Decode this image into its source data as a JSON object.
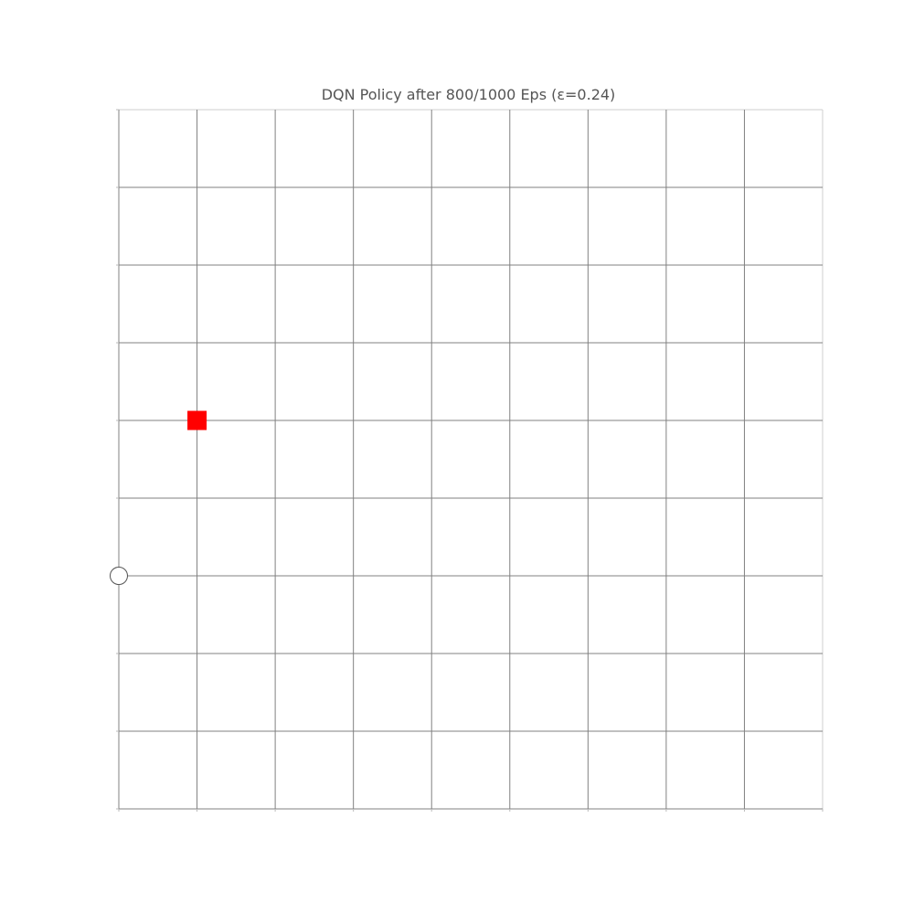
{
  "chart_data": {
    "type": "scatter",
    "title": "DQN Policy after 800/1000 Eps (ε=0.24)",
    "xlabel": "",
    "ylabel": "",
    "xlim": [
      0,
      9
    ],
    "ylim": [
      0,
      9
    ],
    "grid": true,
    "x_ticks": [
      0,
      1,
      2,
      3,
      4,
      5,
      6,
      7,
      8,
      9
    ],
    "y_ticks": [
      0,
      1,
      2,
      3,
      4,
      5,
      6,
      7,
      8,
      9
    ],
    "tick_labels_visible": false,
    "series": [
      {
        "marker": "square",
        "color": "#ff0000",
        "filled": true,
        "points": [
          {
            "x": 1,
            "y": 5
          }
        ]
      },
      {
        "marker": "circle",
        "color": "#ffffff",
        "edgecolor": "#555555",
        "filled": false,
        "points": [
          {
            "x": 0,
            "y": 3
          }
        ]
      }
    ],
    "colors": {
      "grid": "#808080",
      "frame": "#cfcfcf",
      "title": "#555555"
    }
  }
}
